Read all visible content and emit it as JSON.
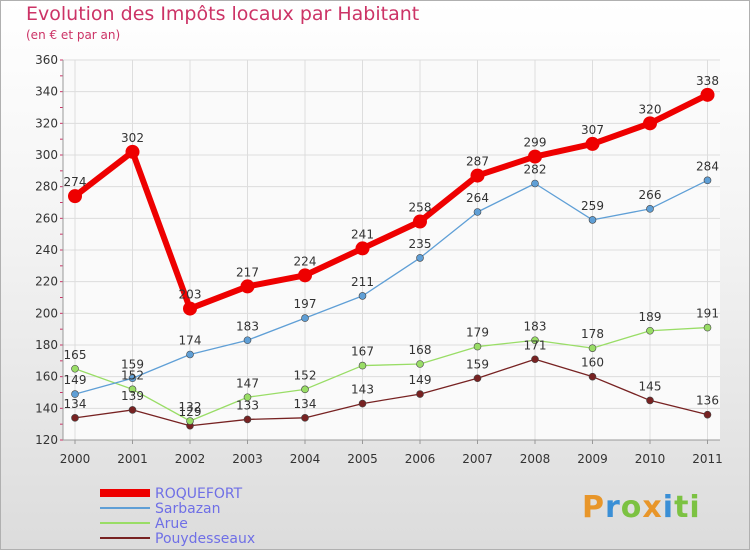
{
  "chart_data": {
    "type": "line",
    "title": "Evolution des Impôts locaux par Habitant",
    "subtitle": "(en € et par an)",
    "categories": [
      "2000",
      "2001",
      "2002",
      "2003",
      "2004",
      "2005",
      "2006",
      "2007",
      "2008",
      "2009",
      "2010",
      "2011"
    ],
    "ylim": [
      120,
      360
    ],
    "yticks": [
      120,
      140,
      160,
      180,
      200,
      220,
      240,
      260,
      280,
      300,
      320,
      340,
      360
    ],
    "series": [
      {
        "name": "ROQUEFORT",
        "color": "#ee0000",
        "values": [
          274,
          302,
          203,
          217,
          224,
          241,
          258,
          287,
          299,
          307,
          320,
          338
        ]
      },
      {
        "name": "Sarbazan",
        "color": "#5f9fd6",
        "values": [
          149,
          159,
          174,
          183,
          197,
          211,
          235,
          264,
          282,
          259,
          266,
          284
        ]
      },
      {
        "name": "Arue",
        "color": "#99dd66",
        "values": [
          165,
          152,
          132,
          147,
          152,
          167,
          168,
          179,
          183,
          178,
          189,
          191
        ]
      },
      {
        "name": "Pouydesseaux",
        "color": "#772222",
        "values": [
          134,
          139,
          129,
          133,
          134,
          143,
          149,
          159,
          171,
          160,
          145,
          136
        ]
      }
    ]
  },
  "logo": {
    "letters": [
      "P",
      "r",
      "o",
      "x",
      "i",
      "t",
      "i"
    ]
  }
}
